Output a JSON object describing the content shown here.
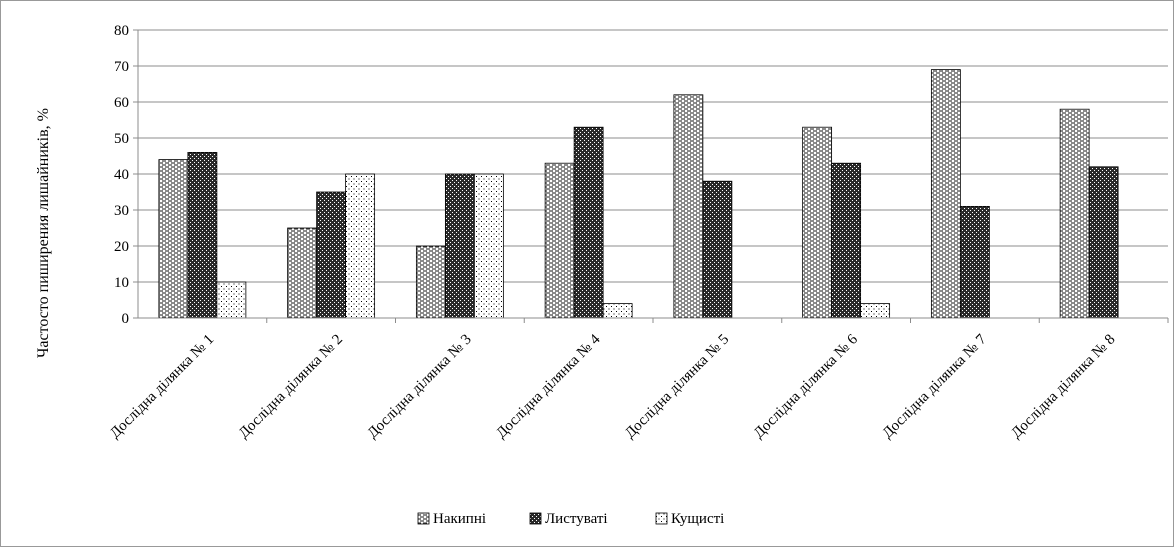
{
  "chart_data": {
    "type": "bar",
    "title": "",
    "xlabel": "",
    "ylabel": "Частосто пиширения лишайників, %",
    "ylim": [
      0,
      80
    ],
    "yticks": [
      0,
      10,
      20,
      30,
      40,
      50,
      60,
      70,
      80
    ],
    "grid": true,
    "legend_position": "bottom",
    "categories": [
      "Дослідна ділянка № 1",
      "Дослідна ділянка № 2",
      "Дослідна ділянка № 3",
      "Дослідна ділянка № 4",
      "Дослідна ділянка № 5",
      "Дослідна ділянка № 6",
      "Дослідна ділянка № 7",
      "Дослідна ділянка № 8"
    ],
    "series": [
      {
        "name": "Накипні",
        "values": [
          44,
          25,
          20,
          43,
          62,
          53,
          69,
          58
        ],
        "pattern": "dashes"
      },
      {
        "name": "Листуваті",
        "values": [
          46,
          35,
          40,
          53,
          38,
          43,
          31,
          42
        ],
        "pattern": "dark"
      },
      {
        "name": "Кущисті",
        "values": [
          10,
          40,
          40,
          4,
          0,
          4,
          0,
          0
        ],
        "pattern": "dots"
      }
    ]
  }
}
